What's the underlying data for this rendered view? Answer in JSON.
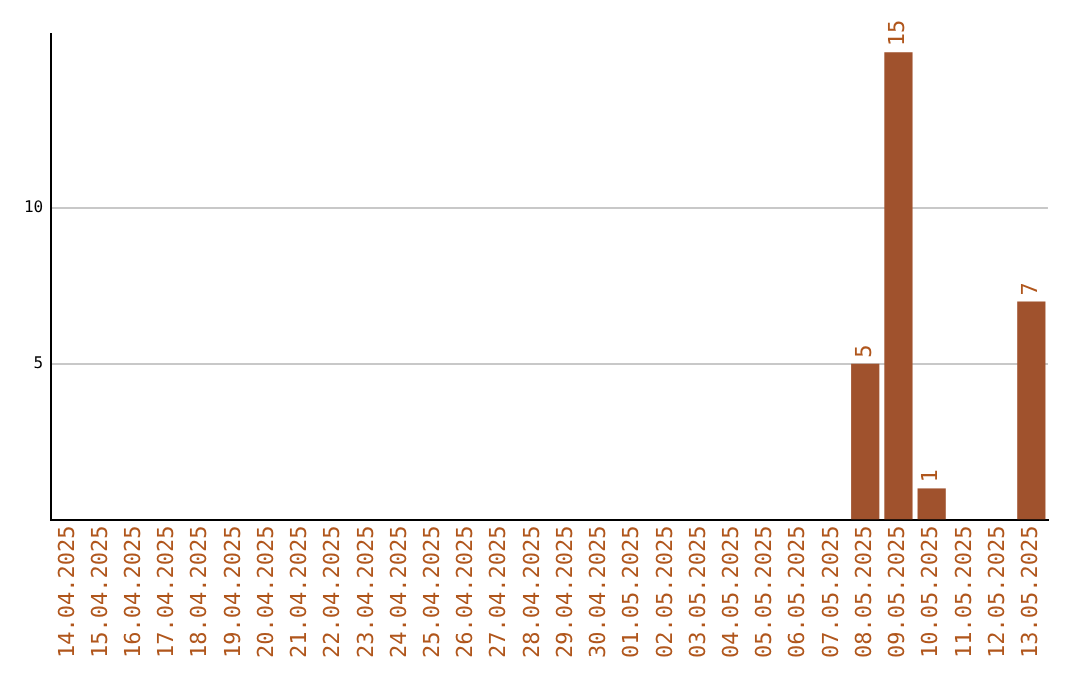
{
  "chart_data": {
    "type": "bar",
    "categories": [
      "14.04.2025",
      "15.04.2025",
      "16.04.2025",
      "17.04.2025",
      "18.04.2025",
      "19.04.2025",
      "20.04.2025",
      "21.04.2025",
      "22.04.2025",
      "23.04.2025",
      "24.04.2025",
      "25.04.2025",
      "26.04.2025",
      "27.04.2025",
      "28.04.2025",
      "29.04.2025",
      "30.04.2025",
      "01.05.2025",
      "02.05.2025",
      "03.05.2025",
      "04.05.2025",
      "05.05.2025",
      "06.05.2025",
      "07.05.2025",
      "08.05.2025",
      "09.05.2025",
      "10.05.2025",
      "11.05.2025",
      "12.05.2025",
      "13.05.2025"
    ],
    "values": [
      0,
      0,
      0,
      0,
      0,
      0,
      0,
      0,
      0,
      0,
      0,
      0,
      0,
      0,
      0,
      0,
      0,
      0,
      0,
      0,
      0,
      0,
      0,
      0,
      5,
      15,
      1,
      0,
      0,
      7
    ],
    "value_labels": [
      null,
      null,
      null,
      null,
      null,
      null,
      null,
      null,
      null,
      null,
      null,
      null,
      null,
      null,
      null,
      null,
      null,
      null,
      null,
      null,
      null,
      null,
      null,
      null,
      "5",
      "15",
      "1",
      null,
      null,
      "7"
    ],
    "color": "#a0522d",
    "ylim": [
      0,
      15.6
    ],
    "yticks": [
      5,
      10
    ],
    "grid": "y",
    "legend": false
  }
}
